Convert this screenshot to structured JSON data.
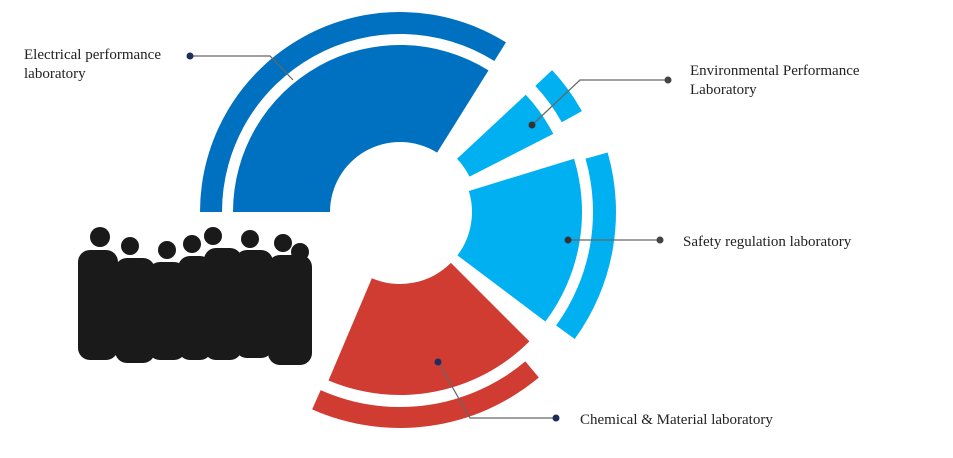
{
  "segments": [
    {
      "label": [
        "Electrical performance",
        "laboratory"
      ]
    },
    {
      "label": [
        "Environmental Performance",
        "Laboratory"
      ]
    },
    {
      "label": [
        "Safety regulation laboratory"
      ]
    },
    {
      "label": [
        "Chemical & Material laboratory"
      ]
    }
  ]
}
